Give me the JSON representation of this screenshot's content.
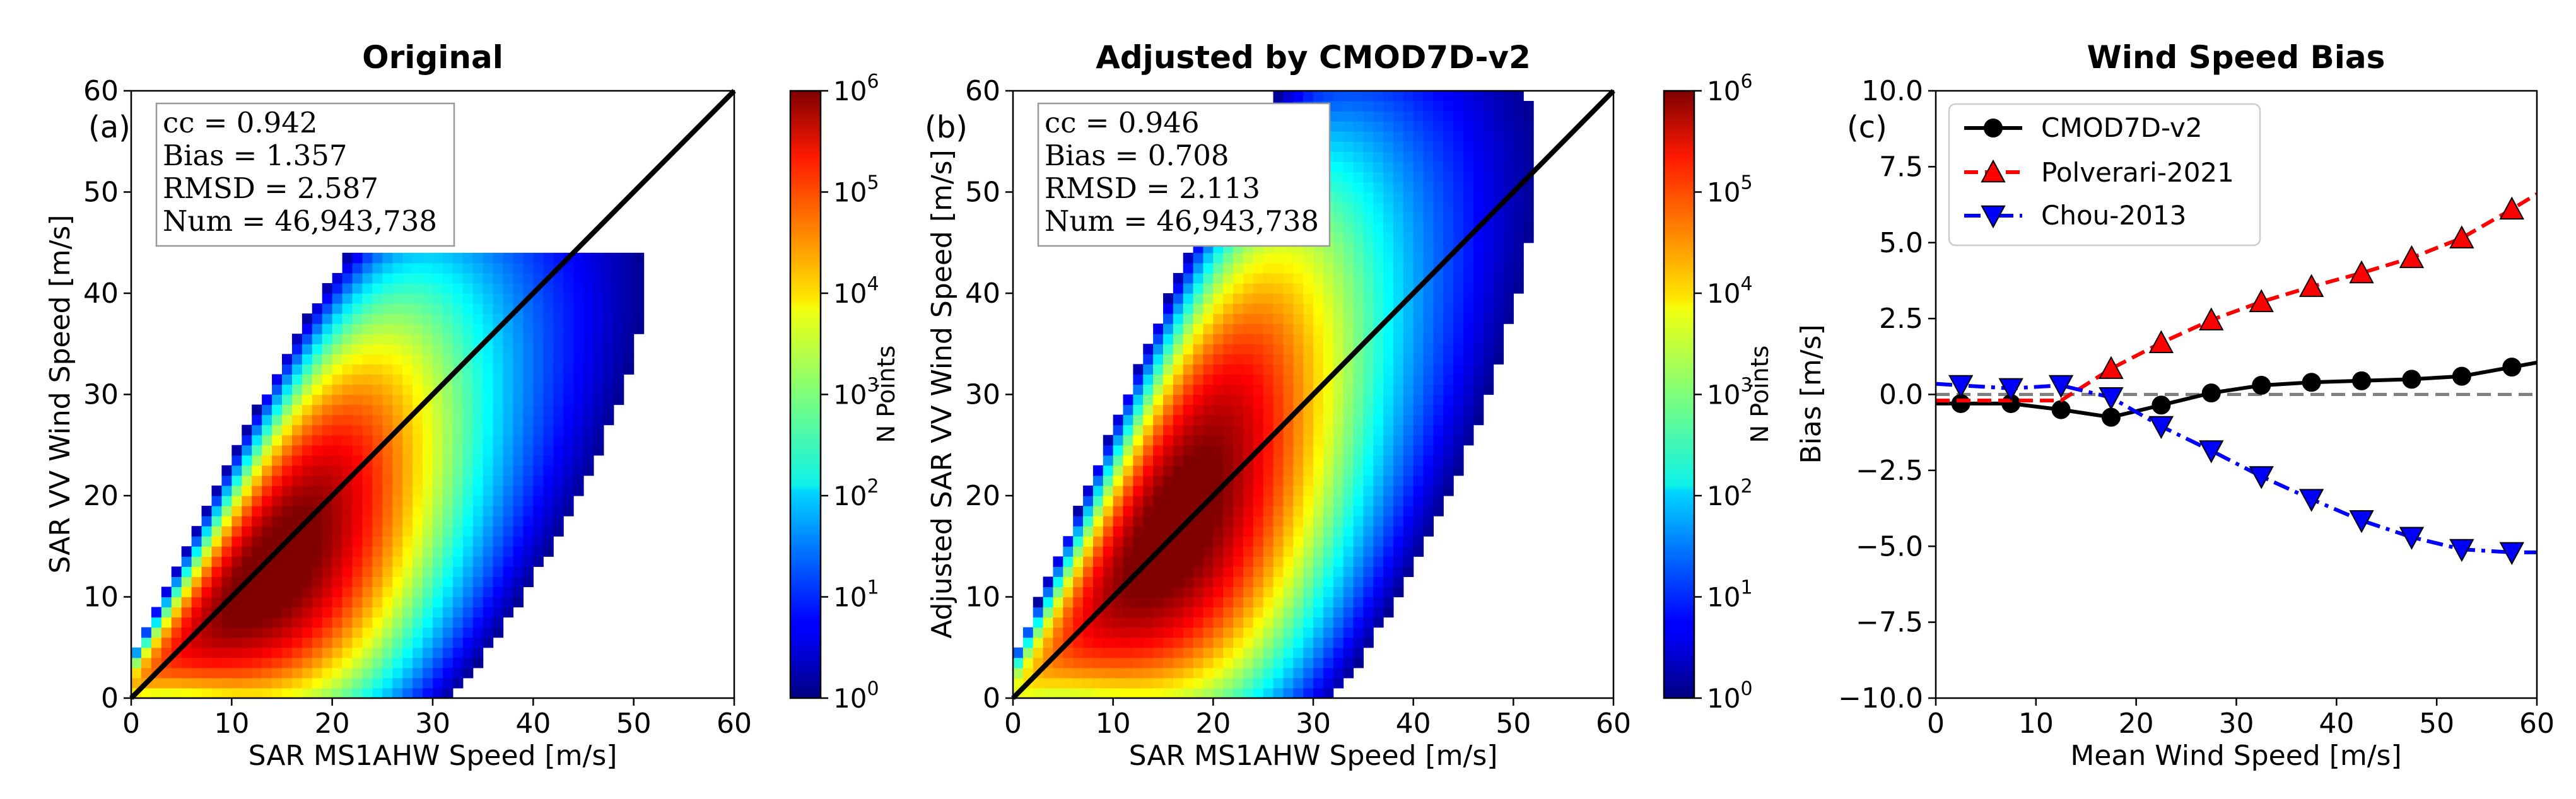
{
  "figure": {
    "panel_a_title": "Original",
    "panel_b_title": "Adjusted by CMOD7D-v2",
    "panel_c_title": "Wind Speed Bias"
  },
  "chart_data": [
    {
      "type": "heatmap",
      "panel_label": "(a)",
      "title": "Original",
      "xlabel": "SAR MS1AHW Speed [m/s]",
      "ylabel": "SAR VV Wind Speed [m/s]",
      "xlim": [
        0,
        60
      ],
      "ylim": [
        0,
        60
      ],
      "xticks": [
        0,
        10,
        20,
        30,
        40,
        50,
        60
      ],
      "yticks": [
        0,
        10,
        20,
        30,
        40,
        50,
        60
      ],
      "identity_line": true,
      "stats": [
        "cc = 0.942",
        "Bias = 1.357",
        "RMSD = 2.587",
        "Num = 46,943,738"
      ],
      "colorbar": {
        "label": "N Points",
        "scale": "log",
        "range": [
          1,
          1000000
        ],
        "ticks": [
          {
            "exp": "0",
            "value": 1
          },
          {
            "exp": "1",
            "value": 10
          },
          {
            "exp": "2",
            "value": 100
          },
          {
            "exp": "3",
            "value": 1000
          },
          {
            "exp": "4",
            "value": 10000
          },
          {
            "exp": "5",
            "value": 100000
          },
          {
            "exp": "6",
            "value": 1000000
          }
        ]
      },
      "density_model": {
        "spread_low": 1.2,
        "spread_growth": 0.32,
        "slope": 0.8,
        "intercept": 1.2,
        "cap": 40.5,
        "peak": 14
      }
    },
    {
      "type": "heatmap",
      "panel_label": "(b)",
      "title": "Adjusted by CMOD7D-v2",
      "xlabel": "SAR MS1AHW Speed [m/s]",
      "ylabel": "Adjusted SAR VV Wind Speed [m/s]",
      "xlim": [
        0,
        60
      ],
      "ylim": [
        0,
        60
      ],
      "xticks": [
        0,
        10,
        20,
        30,
        40,
        50,
        60
      ],
      "yticks": [
        0,
        10,
        20,
        30,
        40,
        50,
        60
      ],
      "identity_line": true,
      "stats": [
        "cc = 0.946",
        "Bias = 0.708",
        "RMSD = 2.113",
        "Num = 46,943,738"
      ],
      "colorbar": {
        "label": "N Points",
        "scale": "log",
        "range": [
          1,
          1000000
        ],
        "ticks": [
          {
            "exp": "0",
            "value": 1
          },
          {
            "exp": "1",
            "value": 10
          },
          {
            "exp": "2",
            "value": 100
          },
          {
            "exp": "3",
            "value": 1000
          },
          {
            "exp": "4",
            "value": 10000
          },
          {
            "exp": "5",
            "value": 100000
          },
          {
            "exp": "6",
            "value": 1000000
          }
        ]
      },
      "density_model": {
        "spread_low": 1.5,
        "spread_growth": 0.36,
        "slope": 1.0,
        "intercept": 0.5,
        "cap": 60,
        "peak": 16
      }
    },
    {
      "type": "line",
      "panel_label": "(c)",
      "title": "Wind Speed Bias",
      "xlabel": "Mean Wind Speed [m/s]",
      "ylabel": "Bias [m/s]",
      "xlim": [
        0,
        60
      ],
      "ylim": [
        -10,
        10
      ],
      "xticks": [
        "0",
        "10",
        "20",
        "30",
        "40",
        "50",
        "60"
      ],
      "yticks": [
        "10.0",
        "7.5",
        "5.0",
        "2.5",
        "0.0",
        "−2.5",
        "−5.0",
        "−7.5",
        "−10.0"
      ],
      "zero_line": {
        "y": 0,
        "style": "dashed",
        "color": "#808080"
      },
      "legend_position": "upper-left",
      "series": [
        {
          "name": "CMOD7D-v2",
          "color": "#000000",
          "linestyle": "solid",
          "marker": "circle",
          "x": [
            2.5,
            7.5,
            12.5,
            17.5,
            22.5,
            27.5,
            32.5,
            37.5,
            42.5,
            47.5,
            52.5,
            57.5
          ],
          "y": [
            -0.3,
            -0.3,
            -0.5,
            -0.75,
            -0.35,
            0.05,
            0.3,
            0.4,
            0.45,
            0.5,
            0.6,
            0.9
          ],
          "line_x": [
            0,
            60
          ],
          "line_y": [
            -0.3,
            1.05
          ]
        },
        {
          "name": "Polverari-2021",
          "color": "#ff0000",
          "linestyle": "dashed",
          "marker": "triangle-up",
          "x": [
            17.5,
            22.5,
            27.5,
            32.5,
            37.5,
            42.5,
            47.5,
            52.5,
            57.5
          ],
          "y": [
            0.85,
            1.7,
            2.45,
            3.05,
            3.55,
            4.0,
            4.5,
            5.15,
            6.1
          ],
          "line_x": [
            0,
            12.5,
            60
          ],
          "line_y": [
            -0.2,
            -0.2,
            6.6
          ]
        },
        {
          "name": "Chou-2013",
          "color": "#0000ff",
          "linestyle": "dashdot",
          "marker": "triangle-down",
          "x": [
            2.5,
            7.5,
            12.5,
            17.5,
            22.5,
            27.5,
            32.5,
            37.5,
            42.5,
            47.5,
            52.5,
            57.5
          ],
          "y": [
            0.3,
            0.2,
            0.3,
            -0.1,
            -1.05,
            -1.85,
            -2.7,
            -3.45,
            -4.15,
            -4.7,
            -5.1,
            -5.2
          ],
          "line_x": [
            0,
            60
          ],
          "line_y": [
            0.35,
            -5.2
          ]
        }
      ]
    }
  ]
}
